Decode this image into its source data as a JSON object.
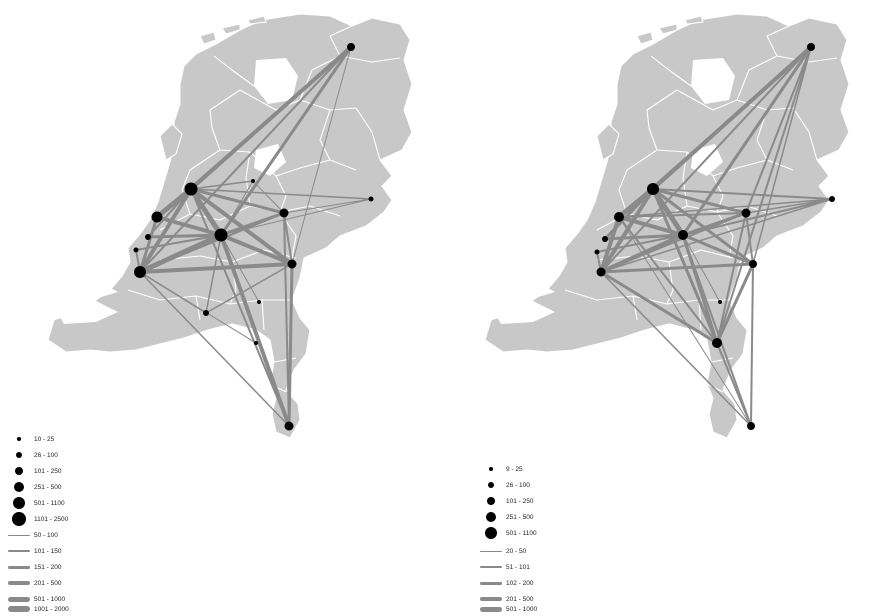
{
  "maps": [
    {
      "id": "left",
      "legend": {
        "node_labels": [
          "10 - 25",
          "26 - 100",
          "101 - 250",
          "251 - 500",
          "501 - 1100",
          "1101 - 2500"
        ],
        "flow_labels": [
          "50 - 100",
          "101 - 150",
          "151 - 200",
          "201 - 500",
          "501 - 1000",
          "1001 - 2000"
        ]
      }
    },
    {
      "id": "right",
      "legend": {
        "node_labels": [
          "9 - 25",
          "26 - 100",
          "101 - 250",
          "251 - 500",
          "501 - 1100"
        ],
        "flow_labels": [
          "20 - 50",
          "51 - 101",
          "102 - 200",
          "201 - 500",
          "501 - 1000"
        ]
      }
    }
  ],
  "colors": {
    "land": "#c8c8c8",
    "borders": "#ffffff",
    "flows": "#8a8a8a",
    "nodes": "#000000",
    "background": "#ffffff"
  }
}
